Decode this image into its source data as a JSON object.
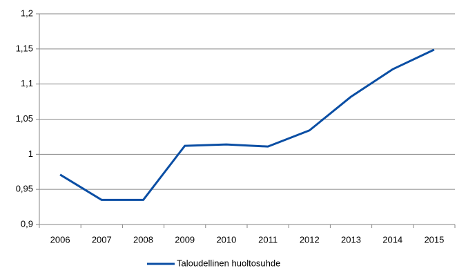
{
  "chart_data": {
    "type": "line",
    "categories": [
      "2006",
      "2007",
      "2008",
      "2009",
      "2010",
      "2011",
      "2012",
      "2013",
      "2014",
      "2015"
    ],
    "series": [
      {
        "name": "Taloudellinen huoltosuhde",
        "color": "#0a4ea4",
        "values": [
          0.971,
          0.935,
          0.935,
          1.012,
          1.014,
          1.011,
          1.034,
          1.082,
          1.121,
          1.149
        ]
      }
    ],
    "ylim": [
      0.9,
      1.2
    ],
    "yticks": [
      {
        "value": 0.9,
        "label": "0,9"
      },
      {
        "value": 0.95,
        "label": "0,95"
      },
      1,
      {
        "value": 1.05,
        "label": "1,05"
      },
      {
        "value": 1.1,
        "label": "1,1"
      },
      {
        "value": 1.15,
        "label": "1,15"
      },
      {
        "value": 1.2,
        "label": "1,2"
      }
    ],
    "grid": true,
    "legend": "bottom"
  }
}
